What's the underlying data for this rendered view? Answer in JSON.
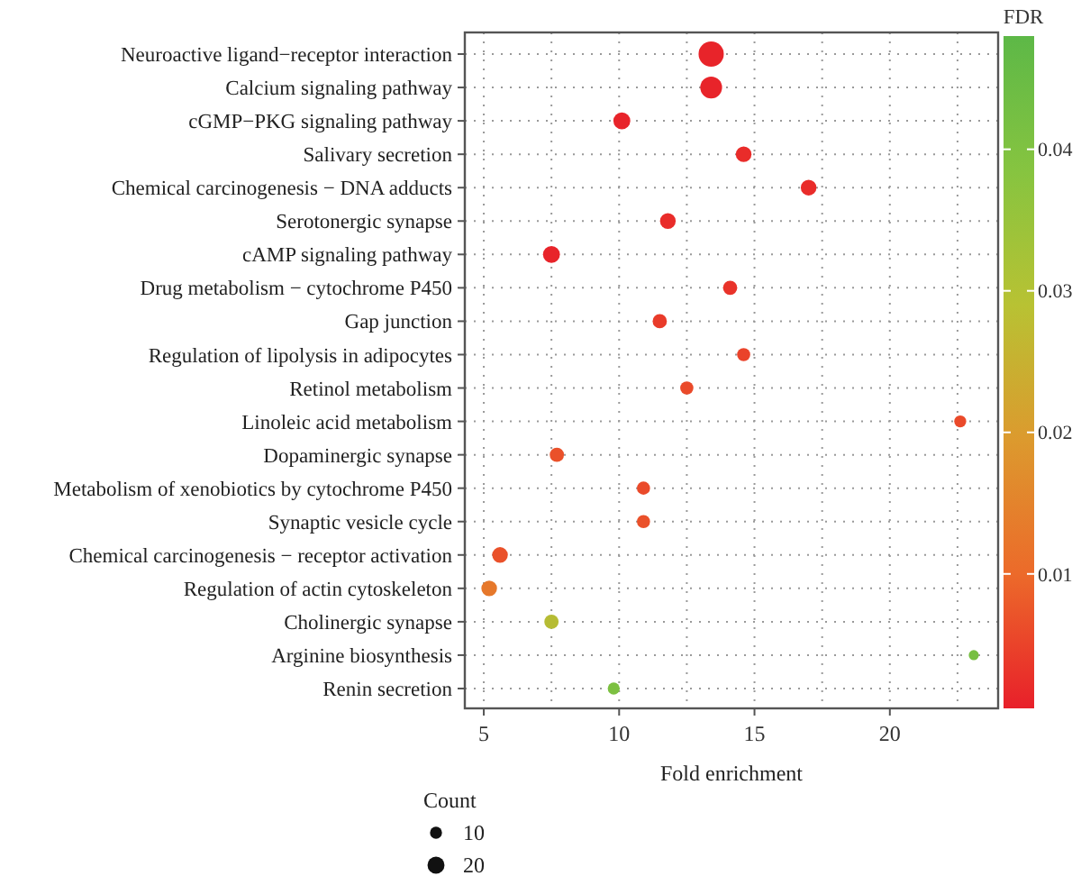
{
  "chart_data": {
    "type": "bubble",
    "xlabel": "Fold enrichment",
    "legend_title": "Count",
    "clabel": "FDR",
    "categories": [
      "Neuroactive ligand−receptor interaction",
      "Calcium signaling pathway",
      "cGMP−PKG signaling pathway",
      "Salivary secretion",
      "Chemical carcinogenesis − DNA adducts",
      "Serotonergic synapse",
      "cAMP signaling pathway",
      "Drug metabolism − cytochrome P450",
      "Gap junction",
      "Regulation of lipolysis in adipocytes",
      "Retinol metabolism",
      "Linoleic acid metabolism",
      "Dopaminergic synapse",
      "Metabolism of xenobiotics by cytochrome P450",
      "Synaptic vesicle cycle",
      "Chemical carcinogenesis − receptor activation",
      "Regulation of actin cytoskeleton",
      "Cholinergic synapse",
      "Arginine biosynthesis",
      "Renin secretion"
    ],
    "values": [
      13.4,
      13.4,
      10.1,
      14.6,
      17.0,
      11.8,
      7.5,
      14.1,
      11.5,
      14.6,
      12.5,
      22.6,
      7.7,
      10.9,
      10.9,
      5.6,
      5.2,
      7.5,
      23.1,
      9.8
    ],
    "sizes": [
      44,
      33,
      20,
      17,
      17,
      17,
      20,
      14,
      14,
      12,
      12,
      10,
      14,
      12,
      12,
      17,
      17,
      14,
      7,
      10
    ],
    "size_legend": [
      10,
      20
    ],
    "cvalues": [
      0.001,
      0.001,
      0.001,
      0.002,
      0.002,
      0.002,
      0.001,
      0.003,
      0.004,
      0.005,
      0.006,
      0.006,
      0.007,
      0.006,
      0.007,
      0.007,
      0.013,
      0.029,
      0.042,
      0.041
    ],
    "clim": [
      0.0005,
      0.048
    ],
    "cticks": [
      0.01,
      0.02,
      0.03,
      0.04
    ],
    "orientation": "horizontal",
    "xlim": [
      4.3,
      24
    ],
    "xticks": [
      5,
      10,
      15,
      20
    ],
    "grid": true
  }
}
